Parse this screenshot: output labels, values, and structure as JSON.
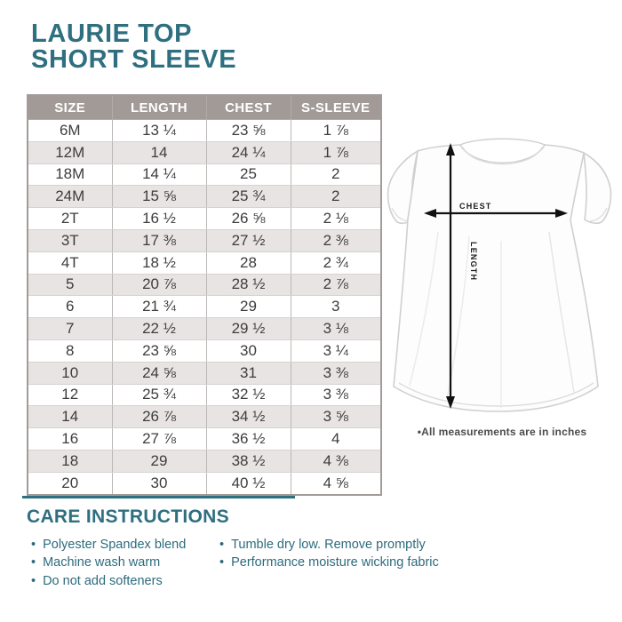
{
  "page": {
    "title_line1": "LAURIE TOP",
    "title_line2": "SHORT SLEEVE"
  },
  "table": {
    "headers": [
      "SIZE",
      "LENGTH",
      "CHEST",
      "S-SLEEVE"
    ],
    "rows": [
      [
        "6M",
        "13 ¼",
        "23 ⅝",
        "1 ⅞"
      ],
      [
        "12M",
        "14",
        "24 ¼",
        "1 ⅞"
      ],
      [
        "18M",
        "14 ¼",
        "25",
        "2"
      ],
      [
        "24M",
        "15 ⅝",
        "25 ¾",
        "2"
      ],
      [
        "2T",
        "16 ½",
        "26 ⅝",
        "2 ⅛"
      ],
      [
        "3T",
        "17 ⅜",
        "27 ½",
        "2 ⅜"
      ],
      [
        "4T",
        "18 ½",
        "28",
        "2 ¾"
      ],
      [
        "5",
        "20 ⅞",
        "28 ½",
        "2 ⅞"
      ],
      [
        "6",
        "21 ¾",
        "29",
        "3"
      ],
      [
        "7",
        "22 ½",
        "29 ½",
        "3 ⅛"
      ],
      [
        "8",
        "23 ⅝",
        "30",
        "3 ¼"
      ],
      [
        "10",
        "24 ⅝",
        "31",
        "3 ⅜"
      ],
      [
        "12",
        "25 ¾",
        "32 ½",
        "3 ⅜"
      ],
      [
        "14",
        "26 ⅞",
        "34 ½",
        "3 ⅝"
      ],
      [
        "16",
        "27 ⅞",
        "36 ½",
        "4"
      ],
      [
        "18",
        "29",
        "38 ½",
        "4 ⅜"
      ],
      [
        "20",
        "30",
        "40 ½",
        "4 ⅝"
      ]
    ]
  },
  "diagram": {
    "chest_label": "CHEST",
    "length_label": "LENGTH",
    "note": "•All measurements are in inches"
  },
  "care": {
    "heading": "CARE INSTRUCTIONS",
    "column1": [
      "Polyester Spandex blend",
      "Machine wash warm",
      "Do not add softeners"
    ],
    "column2": [
      "Tumble dry low. Remove promptly",
      "Performance moisture wicking fabric"
    ]
  },
  "colors": {
    "teal_accent": "#2e6f80",
    "table_header_bg": "#a29a97",
    "table_stripe_bg": "#e8e4e3",
    "body_text": "#3d3d3d",
    "note_text": "#4c4c4c",
    "arrow_black": "#111111"
  }
}
